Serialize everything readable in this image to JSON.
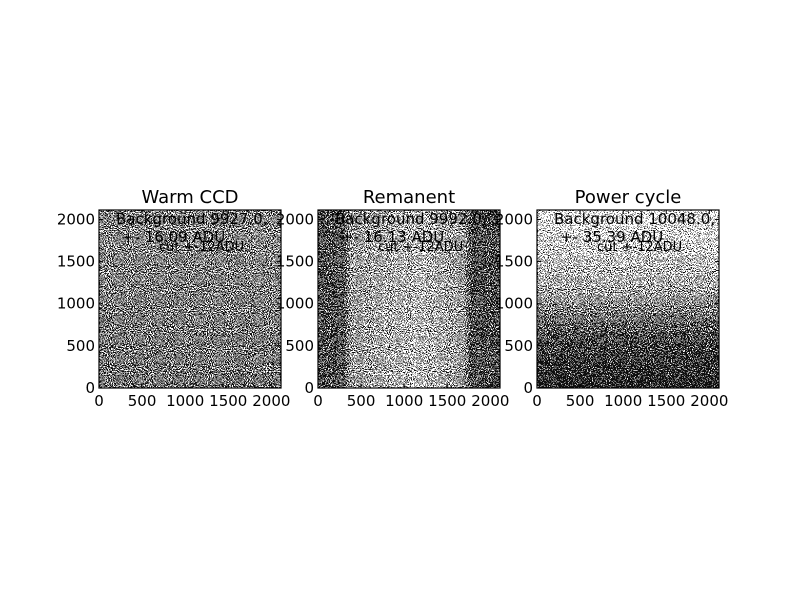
{
  "chart_data": [
    {
      "type": "image",
      "title": "Warm CCD",
      "annotation": [
        "Background 9927.0,",
        "+- 16.09 ADU"
      ],
      "note": "cut +-12ADU",
      "xlim": [
        0,
        2112
      ],
      "ylim": [
        0,
        2112
      ],
      "xticks": [
        0,
        500,
        1000,
        1500,
        2000
      ],
      "yticks": [
        0,
        500,
        1000,
        1500,
        2000
      ]
    },
    {
      "type": "image",
      "title": "Remanent",
      "annotation": [
        "Background 9992.0,",
        "+- 16.13 ADU"
      ],
      "note": "cut +-12ADU",
      "xlim": [
        0,
        2112
      ],
      "ylim": [
        0,
        2112
      ],
      "xticks": [
        0,
        500,
        1000,
        1500,
        2000
      ],
      "yticks": [
        0,
        500,
        1000,
        1500,
        2000
      ]
    },
    {
      "type": "image",
      "title": "Power cycle",
      "annotation": [
        "Background 10048.0,",
        "+- 35.39 ADU"
      ],
      "note": "cut +-12ADU",
      "xlim": [
        0,
        2112
      ],
      "ylim": [
        0,
        2112
      ],
      "xticks": [
        0,
        500,
        1000,
        1500,
        2000
      ],
      "yticks": [
        0,
        500,
        1000,
        1500,
        2000
      ]
    }
  ]
}
